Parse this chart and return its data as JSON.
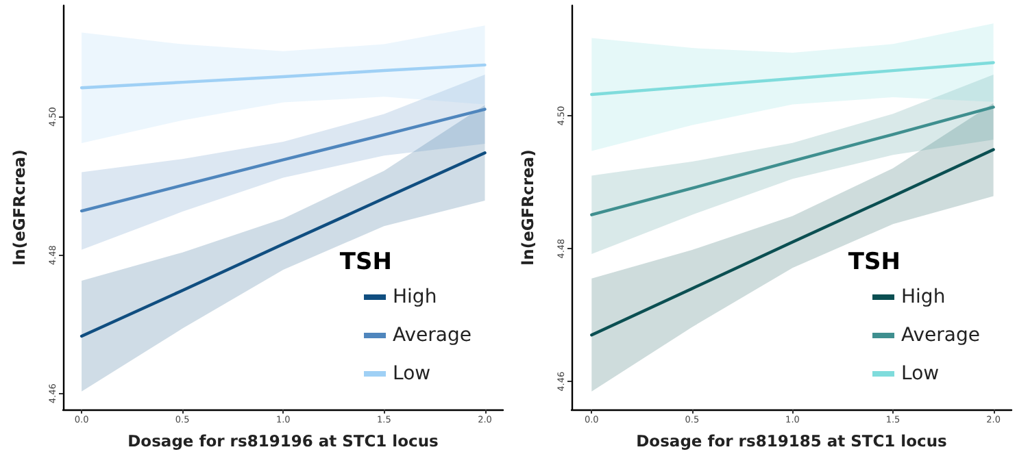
{
  "chart_data": [
    {
      "type": "line",
      "xlabel": "Dosage for rs819196 at STC1 locus",
      "ylabel": "ln(eGFRcrea)",
      "legend_title": "TSH",
      "legend": "bottom right",
      "grid": false,
      "marker": "none",
      "line_style": "solid",
      "x": [
        0,
        0.5,
        1,
        1.5,
        2
      ],
      "xlim": [
        -0.092,
        2.09
      ],
      "xticks": [
        {
          "value": 0,
          "label": "0.0"
        },
        {
          "value": 0.5,
          "label": "0.5"
        },
        {
          "value": 1,
          "label": "1.0"
        },
        {
          "value": 1.5,
          "label": "1.5"
        },
        {
          "value": 2,
          "label": "2.0"
        }
      ],
      "ylim": [
        4.4577,
        4.5161
      ],
      "yticks": [
        {
          "value": 4.46,
          "label": "4.46"
        },
        {
          "value": 4.48,
          "label": "4.48"
        },
        {
          "value": 4.5,
          "label": "4.50"
        }
      ],
      "series": [
        {
          "name": "High",
          "color": "#104e80",
          "values": [
            4.4683,
            4.4749,
            4.4816,
            4.4882,
            4.4948
          ],
          "lower": [
            4.4603,
            4.4694,
            4.4779,
            4.4842,
            4.4879
          ],
          "upper": [
            4.4763,
            4.4804,
            4.4853,
            4.4922,
            4.5017
          ]
        },
        {
          "name": "Average",
          "color": "#4f86bd",
          "values": [
            4.4864,
            4.4901,
            4.4938,
            4.4974,
            4.5011
          ],
          "lower": [
            4.4808,
            4.4863,
            4.4912,
            4.4944,
            4.4961
          ],
          "upper": [
            4.492,
            4.4939,
            4.4964,
            4.5004,
            4.5061
          ]
        },
        {
          "name": "Low",
          "color": "#9fd0f5",
          "values": [
            4.5042,
            4.505,
            4.5058,
            4.5067,
            4.5075
          ],
          "lower": [
            4.4962,
            4.4995,
            4.5021,
            4.5029,
            4.5018
          ],
          "upper": [
            4.5122,
            4.5105,
            4.5095,
            4.5105,
            4.5132
          ]
        }
      ]
    },
    {
      "type": "line",
      "xlabel": "Dosage for rs819185 at STC1 locus",
      "ylabel": "ln(eGFRcrea)",
      "legend_title": "TSH",
      "legend": "bottom right",
      "grid": false,
      "marker": "none",
      "line_style": "solid",
      "x": [
        0,
        0.5,
        1,
        1.5,
        2
      ],
      "xlim": [
        -0.1,
        2.09
      ],
      "xticks": [
        {
          "value": 0,
          "label": "0.0"
        },
        {
          "value": 0.5,
          "label": "0.5"
        },
        {
          "value": 1,
          "label": "1.0"
        },
        {
          "value": 1.5,
          "label": "1.5"
        },
        {
          "value": 2,
          "label": "2.0"
        }
      ],
      "ylim": [
        4.4558,
        4.5166
      ],
      "yticks": [
        {
          "value": 4.46,
          "label": "4.46"
        },
        {
          "value": 4.48,
          "label": "4.48"
        },
        {
          "value": 4.5,
          "label": "4.50"
        }
      ],
      "series": [
        {
          "name": "High",
          "color": "#0b4f52",
          "values": [
            4.467,
            4.474,
            4.481,
            4.4879,
            4.4949
          ],
          "lower": [
            4.4585,
            4.4682,
            4.4771,
            4.4837,
            4.4879
          ],
          "upper": [
            4.4755,
            4.4798,
            4.4849,
            4.4921,
            4.5019
          ]
        },
        {
          "name": "Average",
          "color": "#3f8f8f",
          "values": [
            4.4851,
            4.4891,
            4.4932,
            4.4972,
            4.5013
          ],
          "lower": [
            4.4792,
            4.4851,
            4.4905,
            4.4941,
            4.4964
          ],
          "upper": [
            4.491,
            4.4931,
            4.4959,
            4.5003,
            4.5062
          ]
        },
        {
          "name": "Low",
          "color": "#7fdcdc",
          "values": [
            4.5032,
            4.5044,
            4.5056,
            4.5068,
            4.508
          ],
          "lower": [
            4.4947,
            4.4986,
            4.5017,
            4.5028,
            4.5021
          ],
          "upper": [
            4.5117,
            4.5102,
            4.5095,
            4.5108,
            4.5139
          ]
        }
      ]
    }
  ]
}
